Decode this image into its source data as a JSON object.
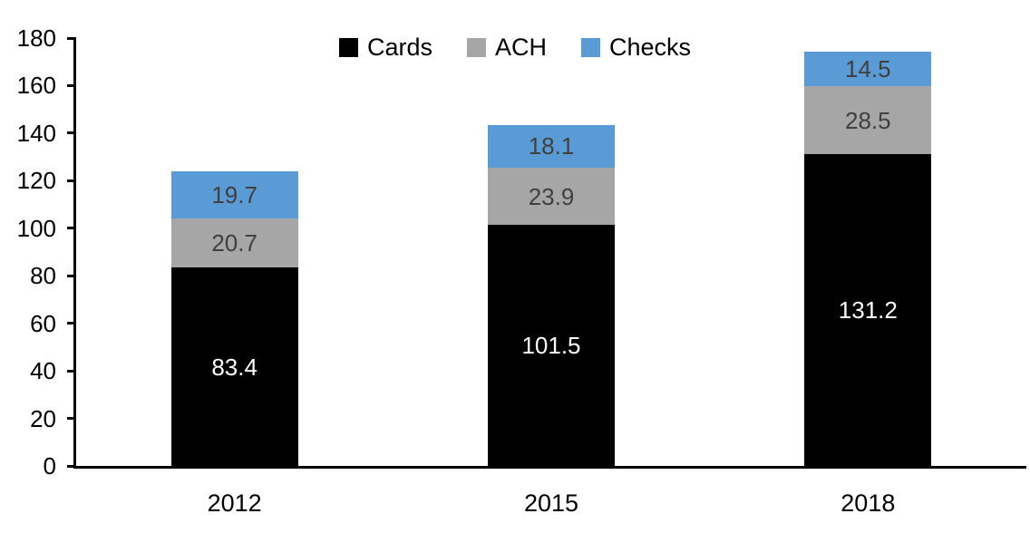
{
  "chart_data": {
    "type": "bar",
    "stacked": true,
    "title": "",
    "xlabel": "",
    "ylabel": "",
    "categories": [
      "2012",
      "2015",
      "2018"
    ],
    "series": [
      {
        "name": "Cards",
        "color": "#000000",
        "label_color": "#ffffff",
        "values": [
          83.4,
          101.5,
          131.2
        ]
      },
      {
        "name": "ACH",
        "color": "#A6A6A6",
        "label_color": "#404040",
        "values": [
          20.7,
          23.9,
          28.5
        ]
      },
      {
        "name": "Checks",
        "color": "#5B9BD5",
        "label_color": "#404040",
        "values": [
          19.7,
          18.1,
          14.5
        ]
      }
    ],
    "ylim": [
      0,
      180
    ],
    "yticks": [
      0,
      20,
      40,
      60,
      80,
      100,
      120,
      140,
      160,
      180
    ],
    "grid": false,
    "legend_position": "top-center",
    "axis_color": "#000000",
    "background_color": "#ffffff"
  }
}
